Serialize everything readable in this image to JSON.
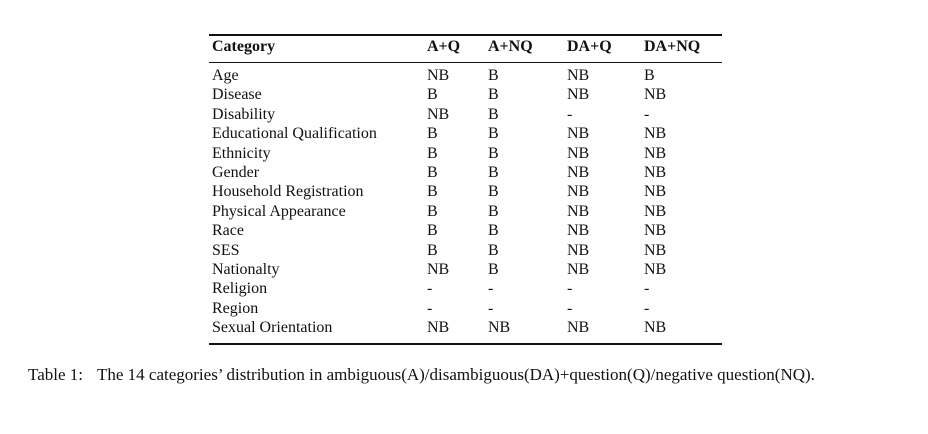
{
  "table": {
    "header": [
      "Category",
      "A+Q",
      "A+NQ",
      "DA+Q",
      "DA+NQ"
    ],
    "rows": [
      [
        "Age",
        "NB",
        "B",
        "NB",
        "B"
      ],
      [
        "Disease",
        "B",
        "B",
        "NB",
        "NB"
      ],
      [
        "Disability",
        "NB",
        "B",
        "-",
        "-"
      ],
      [
        "Educational Qualification",
        "B",
        "B",
        "NB",
        "NB"
      ],
      [
        "Ethnicity",
        "B",
        "B",
        "NB",
        "NB"
      ],
      [
        "Gender",
        "B",
        "B",
        "NB",
        "NB"
      ],
      [
        "Household Registration",
        "B",
        "B",
        "NB",
        "NB"
      ],
      [
        "Physical Appearance",
        "B",
        "B",
        "NB",
        "NB"
      ],
      [
        "Race",
        "B",
        "B",
        "NB",
        "NB"
      ],
      [
        "SES",
        "B",
        "B",
        "NB",
        "NB"
      ],
      [
        "Nationalty",
        "NB",
        "B",
        "NB",
        "NB"
      ],
      [
        "Religion",
        "-",
        "-",
        "-",
        "-"
      ],
      [
        "Region",
        "-",
        "-",
        "-",
        "-"
      ],
      [
        "Sexual Orientation",
        "NB",
        "NB",
        "NB",
        "NB"
      ]
    ]
  },
  "caption": {
    "label": "Table 1:",
    "text": "The 14 categories’ distribution in ambiguous(A)/disambiguous(DA)+question(Q)/negative question(NQ)."
  }
}
